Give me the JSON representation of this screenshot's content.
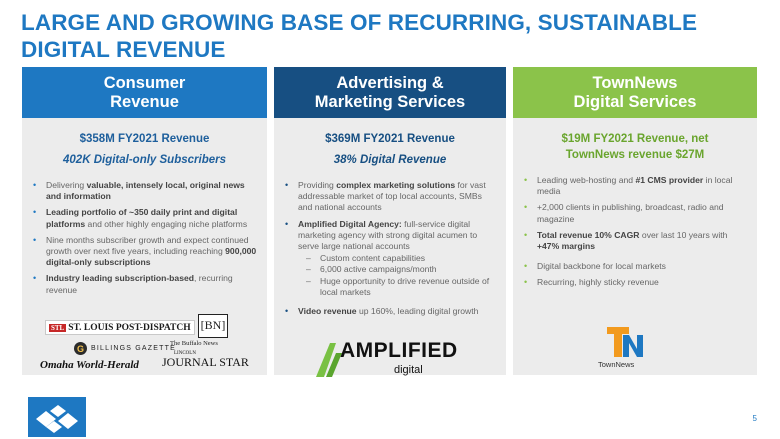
{
  "title": {
    "line1": "LARGE AND GROWING BASE OF RECURRING, SUSTAINABLE",
    "line2": "DIGITAL REVENUE"
  },
  "columns": [
    {
      "header_line1": "Consumer",
      "header_line2": "Revenue",
      "revenue": "$358M FY2021 Revenue",
      "subtitle": "402K Digital-only Subscribers",
      "bullets": [
        {
          "pre": "Delivering ",
          "bold": "valuable, intensely local, original news and information",
          "post": ""
        },
        {
          "pre": "",
          "bold": "Leading portfolio of ~350 daily print and digital platforms",
          "post": " and other highly engaging niche platforms"
        },
        {
          "pre": "Nine months subscriber growth and expect continued growth over next five years, including reaching ",
          "bold": "900,000 digital-only subscriptions",
          "post": ""
        },
        {
          "pre": "",
          "bold": "Industry leading subscription-based",
          "post": ", recurring revenue"
        }
      ],
      "logos": {
        "stl_box": "STL",
        "stl": "ST. LOUIS POST-DISPATCH",
        "bn": "[BN]",
        "billings_mark": "G",
        "billings": "BILLINGS GAZETTE",
        "buffalo": "The Buffalo News",
        "omaha": "Omaha World-Herald",
        "journal_small": "LINCOLN",
        "journal": "JOURNAL STAR"
      }
    },
    {
      "header_line1": "Advertising &",
      "header_line2": "Marketing Services",
      "revenue": "$369M FY2021 Revenue",
      "subtitle": "38% Digital Revenue",
      "bullets": [
        {
          "pre": "Providing ",
          "bold": "complex marketing solutions",
          "post": " for vast addressable market of top local accounts, SMBs and national accounts"
        },
        {
          "pre": "",
          "bold": "Amplified Digital Agency:",
          "post": " full-service digital marketing agency with strong digital acumen to serve large national accounts"
        },
        {
          "pre": "",
          "bold": "Video revenue",
          "post": " up 160%, leading digital growth"
        }
      ],
      "subbullets": [
        "Custom content capabilities",
        "6,000 active campaigns/month",
        "Huge opportunity to drive revenue outside of local markets"
      ],
      "logo_word": "AMPLIFIED",
      "logo_sub": "digital"
    },
    {
      "header_line1": "TownNews",
      "header_line2": "Digital Services",
      "revenue": "$19M FY2021 Revenue, net",
      "revenue2": "TownNews revenue $27M",
      "bullets": [
        {
          "pre": "Leading web-hosting and ",
          "bold": "#1 CMS provider",
          "post": " in local media"
        },
        {
          "pre": "+2,000 clients in publishing, broadcast, radio and magazine",
          "bold": "",
          "post": ""
        },
        {
          "pre": "",
          "bold": "Total revenue 10% CAGR",
          "post": " over last 10 years with ",
          "bold2": "+47% margins"
        },
        {
          "pre": "Digital backbone for local markets",
          "bold": "",
          "post": ""
        },
        {
          "pre": "Recurring, highly sticky revenue",
          "bold": "",
          "post": ""
        }
      ],
      "logo_word": "TownNews"
    }
  ],
  "page_number": "5",
  "colors": {
    "title_blue": "#1e78c2",
    "consumer": "#1e78c2",
    "advertising": "#174f82",
    "townnews": "#8bc34a"
  }
}
